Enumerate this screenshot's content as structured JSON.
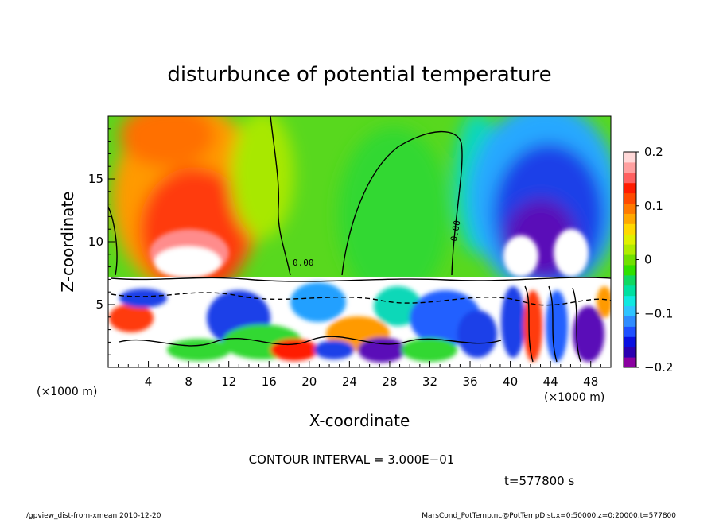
{
  "chart_data": {
    "type": "heatmap",
    "title": "disturbunce of potential temperature",
    "xlabel": "X-coordinate",
    "ylabel": "Z-coordinate",
    "x_unit_label": "(×1000 m)",
    "y_unit_label": "(×1000 m)",
    "xlim": [
      0,
      50
    ],
    "ylim": [
      0,
      20
    ],
    "x_ticks": [
      "4",
      "8",
      "12",
      "16",
      "20",
      "24",
      "28",
      "32",
      "36",
      "40",
      "44",
      "48"
    ],
    "x_tick_values": [
      4,
      8,
      12,
      16,
      20,
      24,
      28,
      32,
      36,
      40,
      44,
      48
    ],
    "y_ticks": [
      "5",
      "10",
      "15"
    ],
    "y_tick_values": [
      5,
      10,
      15
    ],
    "colorbar": {
      "range": [
        -0.2,
        0.2
      ],
      "tick_labels": [
        "0.2",
        "0.1",
        "0",
        "−0.1",
        "−0.2"
      ],
      "tick_values": [
        0.2,
        0.1,
        0,
        -0.1,
        -0.2
      ],
      "colors": [
        "#8a00a0",
        "#2b00b0",
        "#0a10e0",
        "#1f50ff",
        "#2f8cff",
        "#2fc4ff",
        "#10e8e0",
        "#00e0a0",
        "#10d860",
        "#30e000",
        "#70e000",
        "#b0ec00",
        "#e0f000",
        "#ffd800",
        "#ffa800",
        "#ff7a00",
        "#ff4a00",
        "#ff1c00",
        "#ff6060",
        "#ffa0a0",
        "#ffd8d8"
      ]
    },
    "contour_interval_text": "CONTOUR INTERVAL = 3.000E−01",
    "contour_labels": [
      "0.00",
      "0.00"
    ]
  },
  "annotations": {
    "time": "t=577800 s",
    "footer_left": "./gpview_dist-from-xmean  2010-12-20",
    "footer_right": "MarsCond_PotTemp.nc@PotTempDist,x=0:50000,z=0:20000,t=577800"
  }
}
